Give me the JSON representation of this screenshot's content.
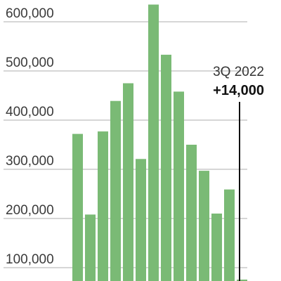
{
  "chart_data": {
    "type": "bar",
    "title": "",
    "xlabel": "",
    "ylabel": "",
    "ylim": [
      0,
      600000
    ],
    "y_ticks": [
      {
        "value": 100000,
        "label": "100,000"
      },
      {
        "value": 200000,
        "label": "200,000"
      },
      {
        "value": 300000,
        "label": "300,000"
      },
      {
        "value": 400000,
        "label": "400,000"
      },
      {
        "value": 500000,
        "label": "500,000"
      },
      {
        "value": 600000,
        "label": "600,000"
      }
    ],
    "grid": true,
    "bar_color": "#7aba75",
    "gridline_color": "#c8c8c8",
    "values": [
      372000,
      208000,
      377000,
      439000,
      475000,
      321000,
      635000,
      533000,
      458000,
      350000,
      297000,
      210000,
      259000,
      14000
    ],
    "annotation": {
      "period": "3Q 2022",
      "value_label": "+14,000"
    }
  }
}
